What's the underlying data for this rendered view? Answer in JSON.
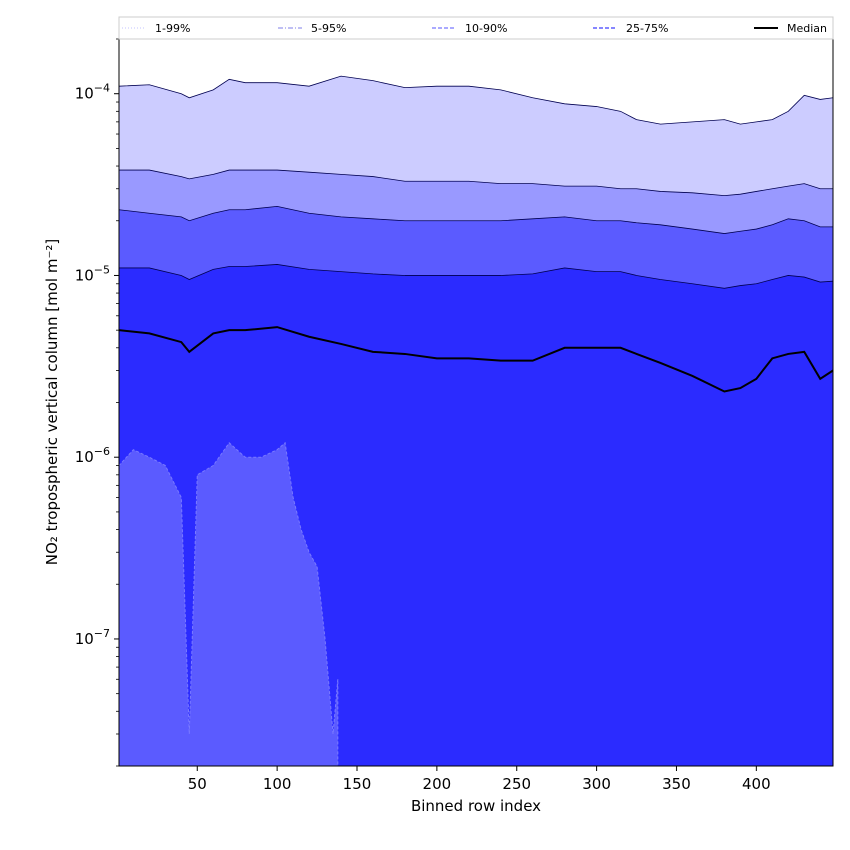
{
  "chart_data": {
    "type": "area",
    "title": "",
    "xlabel": "Binned row index",
    "ylabel": "NO₂ tropospheric vertical column [mol m⁻²]",
    "xscale": "linear",
    "yscale": "log",
    "xlim": [
      1,
      448
    ],
    "ylim": [
      2e-08,
      0.0002
    ],
    "x_ticks": [
      50,
      100,
      150,
      200,
      250,
      300,
      350,
      400
    ],
    "y_ticks": [
      1e-07,
      1e-06,
      1e-05,
      0.0001
    ],
    "y_tick_labels": [
      {
        "base": "10",
        "exp": "−7"
      },
      {
        "base": "10",
        "exp": "−6"
      },
      {
        "base": "10",
        "exp": "−5"
      },
      {
        "base": "10",
        "exp": "−4"
      }
    ],
    "grid": false,
    "legend_position": "top, outside, full width",
    "legend": [
      {
        "name": "1-99%",
        "style": "dotted",
        "color": "#cfcfff"
      },
      {
        "name": "5-95%",
        "style": "dash-dot",
        "color": "#9999ee"
      },
      {
        "name": "10-90%",
        "style": "dashed",
        "color": "#7777ff"
      },
      {
        "name": "25-75%",
        "style": "dashed",
        "color": "#3d3dff"
      },
      {
        "name": "Median",
        "style": "solid",
        "color": "#000000"
      }
    ],
    "fill_colors": [
      "#ccccff",
      "#9999ff",
      "#5b5bff",
      "#2b2bff"
    ],
    "x": [
      1,
      20,
      40,
      45,
      60,
      70,
      80,
      100,
      120,
      140,
      160,
      180,
      200,
      220,
      240,
      260,
      280,
      300,
      315,
      325,
      340,
      360,
      380,
      390,
      400,
      410,
      420,
      430,
      440,
      448
    ],
    "series": [
      {
        "name": "1-99% upper",
        "values": [
          0.00011,
          0.000112,
          0.0001,
          9.5e-05,
          0.000105,
          0.00012,
          0.000115,
          0.000115,
          0.00011,
          0.000125,
          0.000118,
          0.000108,
          0.00011,
          0.00011,
          0.000105,
          9.5e-05,
          8.8e-05,
          8.5e-05,
          8e-05,
          7.2e-05,
          6.8e-05,
          7e-05,
          7.2e-05,
          6.8e-05,
          7e-05,
          7.2e-05,
          8e-05,
          9.8e-05,
          9.3e-05,
          9.5e-05
        ]
      },
      {
        "name": "5-95% upper",
        "values": [
          3.8e-05,
          3.8e-05,
          3.5e-05,
          3.4e-05,
          3.6e-05,
          3.8e-05,
          3.8e-05,
          3.8e-05,
          3.7e-05,
          3.6e-05,
          3.5e-05,
          3.3e-05,
          3.3e-05,
          3.3e-05,
          3.2e-05,
          3.2e-05,
          3.1e-05,
          3.1e-05,
          3e-05,
          3e-05,
          2.9e-05,
          2.85e-05,
          2.75e-05,
          2.8e-05,
          2.9e-05,
          3e-05,
          3.1e-05,
          3.2e-05,
          3e-05,
          3e-05
        ]
      },
      {
        "name": "10-90% upper",
        "values": [
          2.3e-05,
          2.2e-05,
          2.1e-05,
          2e-05,
          2.2e-05,
          2.3e-05,
          2.3e-05,
          2.4e-05,
          2.2e-05,
          2.1e-05,
          2.05e-05,
          2e-05,
          2e-05,
          2e-05,
          2e-05,
          2.05e-05,
          2.1e-05,
          2e-05,
          2e-05,
          1.95e-05,
          1.9e-05,
          1.8e-05,
          1.7e-05,
          1.75e-05,
          1.8e-05,
          1.9e-05,
          2.05e-05,
          2e-05,
          1.85e-05,
          1.85e-05
        ]
      },
      {
        "name": "25-75% upper",
        "values": [
          1.1e-05,
          1.1e-05,
          1e-05,
          9.5e-06,
          1.08e-05,
          1.12e-05,
          1.12e-05,
          1.15e-05,
          1.08e-05,
          1.05e-05,
          1.02e-05,
          1e-05,
          1e-05,
          1e-05,
          1e-05,
          1.02e-05,
          1.1e-05,
          1.05e-05,
          1.05e-05,
          1e-05,
          9.5e-06,
          9e-06,
          8.5e-06,
          8.8e-06,
          9e-06,
          9.5e-06,
          1e-05,
          9.8e-06,
          9.2e-06,
          9.3e-06
        ]
      },
      {
        "name": "Median",
        "values": [
          5e-06,
          4.8e-06,
          4.3e-06,
          3.8e-06,
          4.8e-06,
          5e-06,
          5e-06,
          5.2e-06,
          4.6e-06,
          4.2e-06,
          3.8e-06,
          3.7e-06,
          3.5e-06,
          3.5e-06,
          3.4e-06,
          3.4e-06,
          4e-06,
          4e-06,
          4e-06,
          3.7e-06,
          3.3e-06,
          2.8e-06,
          2.3e-06,
          2.4e-06,
          2.7e-06,
          3.5e-06,
          3.7e-06,
          3.8e-06,
          2.7e-06,
          3e-06
        ]
      },
      {
        "name": "lower band edge",
        "x": [
          1,
          10,
          20,
          30,
          40,
          45,
          50,
          60,
          70,
          80,
          90,
          100,
          105,
          110,
          115,
          120,
          125,
          130,
          135,
          138
        ],
        "values": [
          9e-07,
          1.1e-06,
          1e-06,
          9e-07,
          6e-07,
          3e-08,
          8e-07,
          9e-07,
          1.2e-06,
          1e-06,
          1e-06,
          1.1e-06,
          1.2e-06,
          6e-07,
          4e-07,
          3e-07,
          2.5e-07,
          1e-07,
          3e-08,
          6e-08
        ]
      }
    ]
  }
}
